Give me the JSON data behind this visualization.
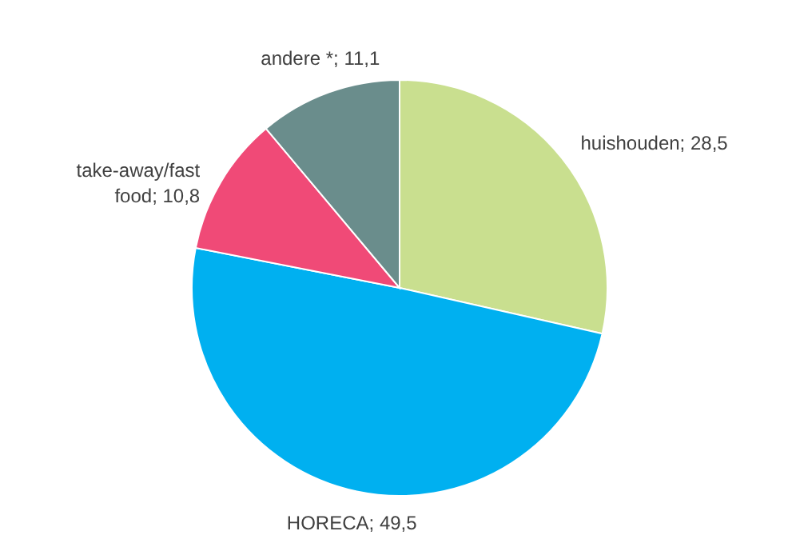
{
  "chart_data": {
    "type": "pie",
    "categories": [
      "huishouden",
      "HORECA",
      "take-away/fast food",
      "andere *"
    ],
    "value_labels": [
      "28,5",
      "49,5",
      "10,8",
      "11,1"
    ],
    "values": [
      28.5,
      49.5,
      10.8,
      11.1
    ],
    "colors": [
      "#c9df8f",
      "#00b0f0",
      "#f04a77",
      "#6a8d8c"
    ],
    "data_labels": true
  }
}
